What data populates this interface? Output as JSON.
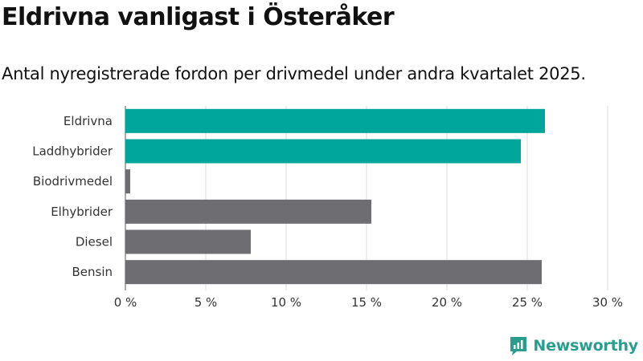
{
  "header": {
    "title": "Eldrivna vanligast i Österåker",
    "subtitle": "Antal nyregistrerade fordon per drivmedel under andra kvartalet 2025."
  },
  "brand": {
    "name": "Newsworthy",
    "icon": "newsworthy-logo-icon"
  },
  "colors": {
    "highlight": "#00a59b",
    "default": "#6e6d72",
    "grid": "#dddddd"
  },
  "chart_data": {
    "type": "bar",
    "orientation": "horizontal",
    "categories": [
      "Eldrivna",
      "Laddhybrider",
      "Biodrivmedel",
      "Elhybrider",
      "Diesel",
      "Bensin"
    ],
    "values": [
      26.1,
      24.6,
      0.3,
      15.3,
      7.8,
      25.9
    ],
    "highlighted": [
      true,
      true,
      false,
      false,
      false,
      false
    ],
    "xlim": [
      0,
      30
    ],
    "xticks": [
      0,
      5,
      10,
      15,
      20,
      25,
      30
    ],
    "xtick_labels": [
      "0 %",
      "5 %",
      "10 %",
      "15 %",
      "20 %",
      "25 %",
      "30 %"
    ],
    "grid": true,
    "legend": "none"
  }
}
